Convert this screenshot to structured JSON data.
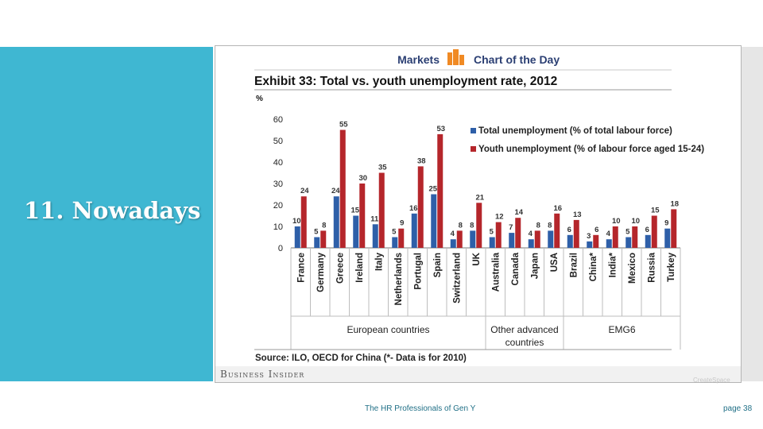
{
  "slide": {
    "title": "11. Nowadays",
    "footer_text": "The HR Professionals of Gen Y",
    "page_label": "page 38",
    "watermark": "CreateSpace",
    "accent_color": "#3fb7d2"
  },
  "banner": {
    "left_text": "Markets",
    "right_text": "Chart of the Day",
    "text_color": "#2b3f73",
    "icon_color": "#f08a24"
  },
  "brand": {
    "name": "Business Insider"
  },
  "chart_data": {
    "type": "bar",
    "title": "Exhibit 33: Total vs. youth unemployment rate, 2012",
    "ylabel": "%",
    "ylim": [
      0,
      60
    ],
    "yticks": [
      0,
      10,
      20,
      30,
      40,
      50,
      60
    ],
    "categories": [
      "France",
      "Germany",
      "Greece",
      "Ireland",
      "Italy",
      "Netherlands",
      "Portugal",
      "Spain",
      "Switzerland",
      "UK",
      "Australia",
      "Canada",
      "Japan",
      "USA",
      "Brazil",
      "China*",
      "India*",
      "Mexico",
      "Russia",
      "Turkey"
    ],
    "series": [
      {
        "name": "Total unemployment (% of total labour force)",
        "color": "#2e5fa8",
        "values": [
          10,
          5,
          24,
          15,
          11,
          5,
          16,
          25,
          4,
          8,
          5,
          7,
          4,
          8,
          6,
          3,
          4,
          5,
          6,
          9
        ]
      },
      {
        "name": "Youth unemployment (% of labour force aged 15-24)",
        "color": "#b5262b",
        "values": [
          24,
          8,
          55,
          30,
          35,
          9,
          38,
          53,
          8,
          21,
          12,
          14,
          8,
          16,
          13,
          6,
          10,
          10,
          15,
          18
        ]
      }
    ],
    "groups": [
      {
        "label": "European countries",
        "lines": [
          "European countries"
        ],
        "count": 10
      },
      {
        "label": "Other advanced countries",
        "lines": [
          "Other advanced",
          "countries"
        ],
        "count": 4
      },
      {
        "label": "EMG6",
        "lines": [
          "EMG6"
        ],
        "count": 6
      }
    ],
    "source": "Source: ILO, OECD for China (*- Data is for 2010)",
    "legend_position": "top-right"
  }
}
